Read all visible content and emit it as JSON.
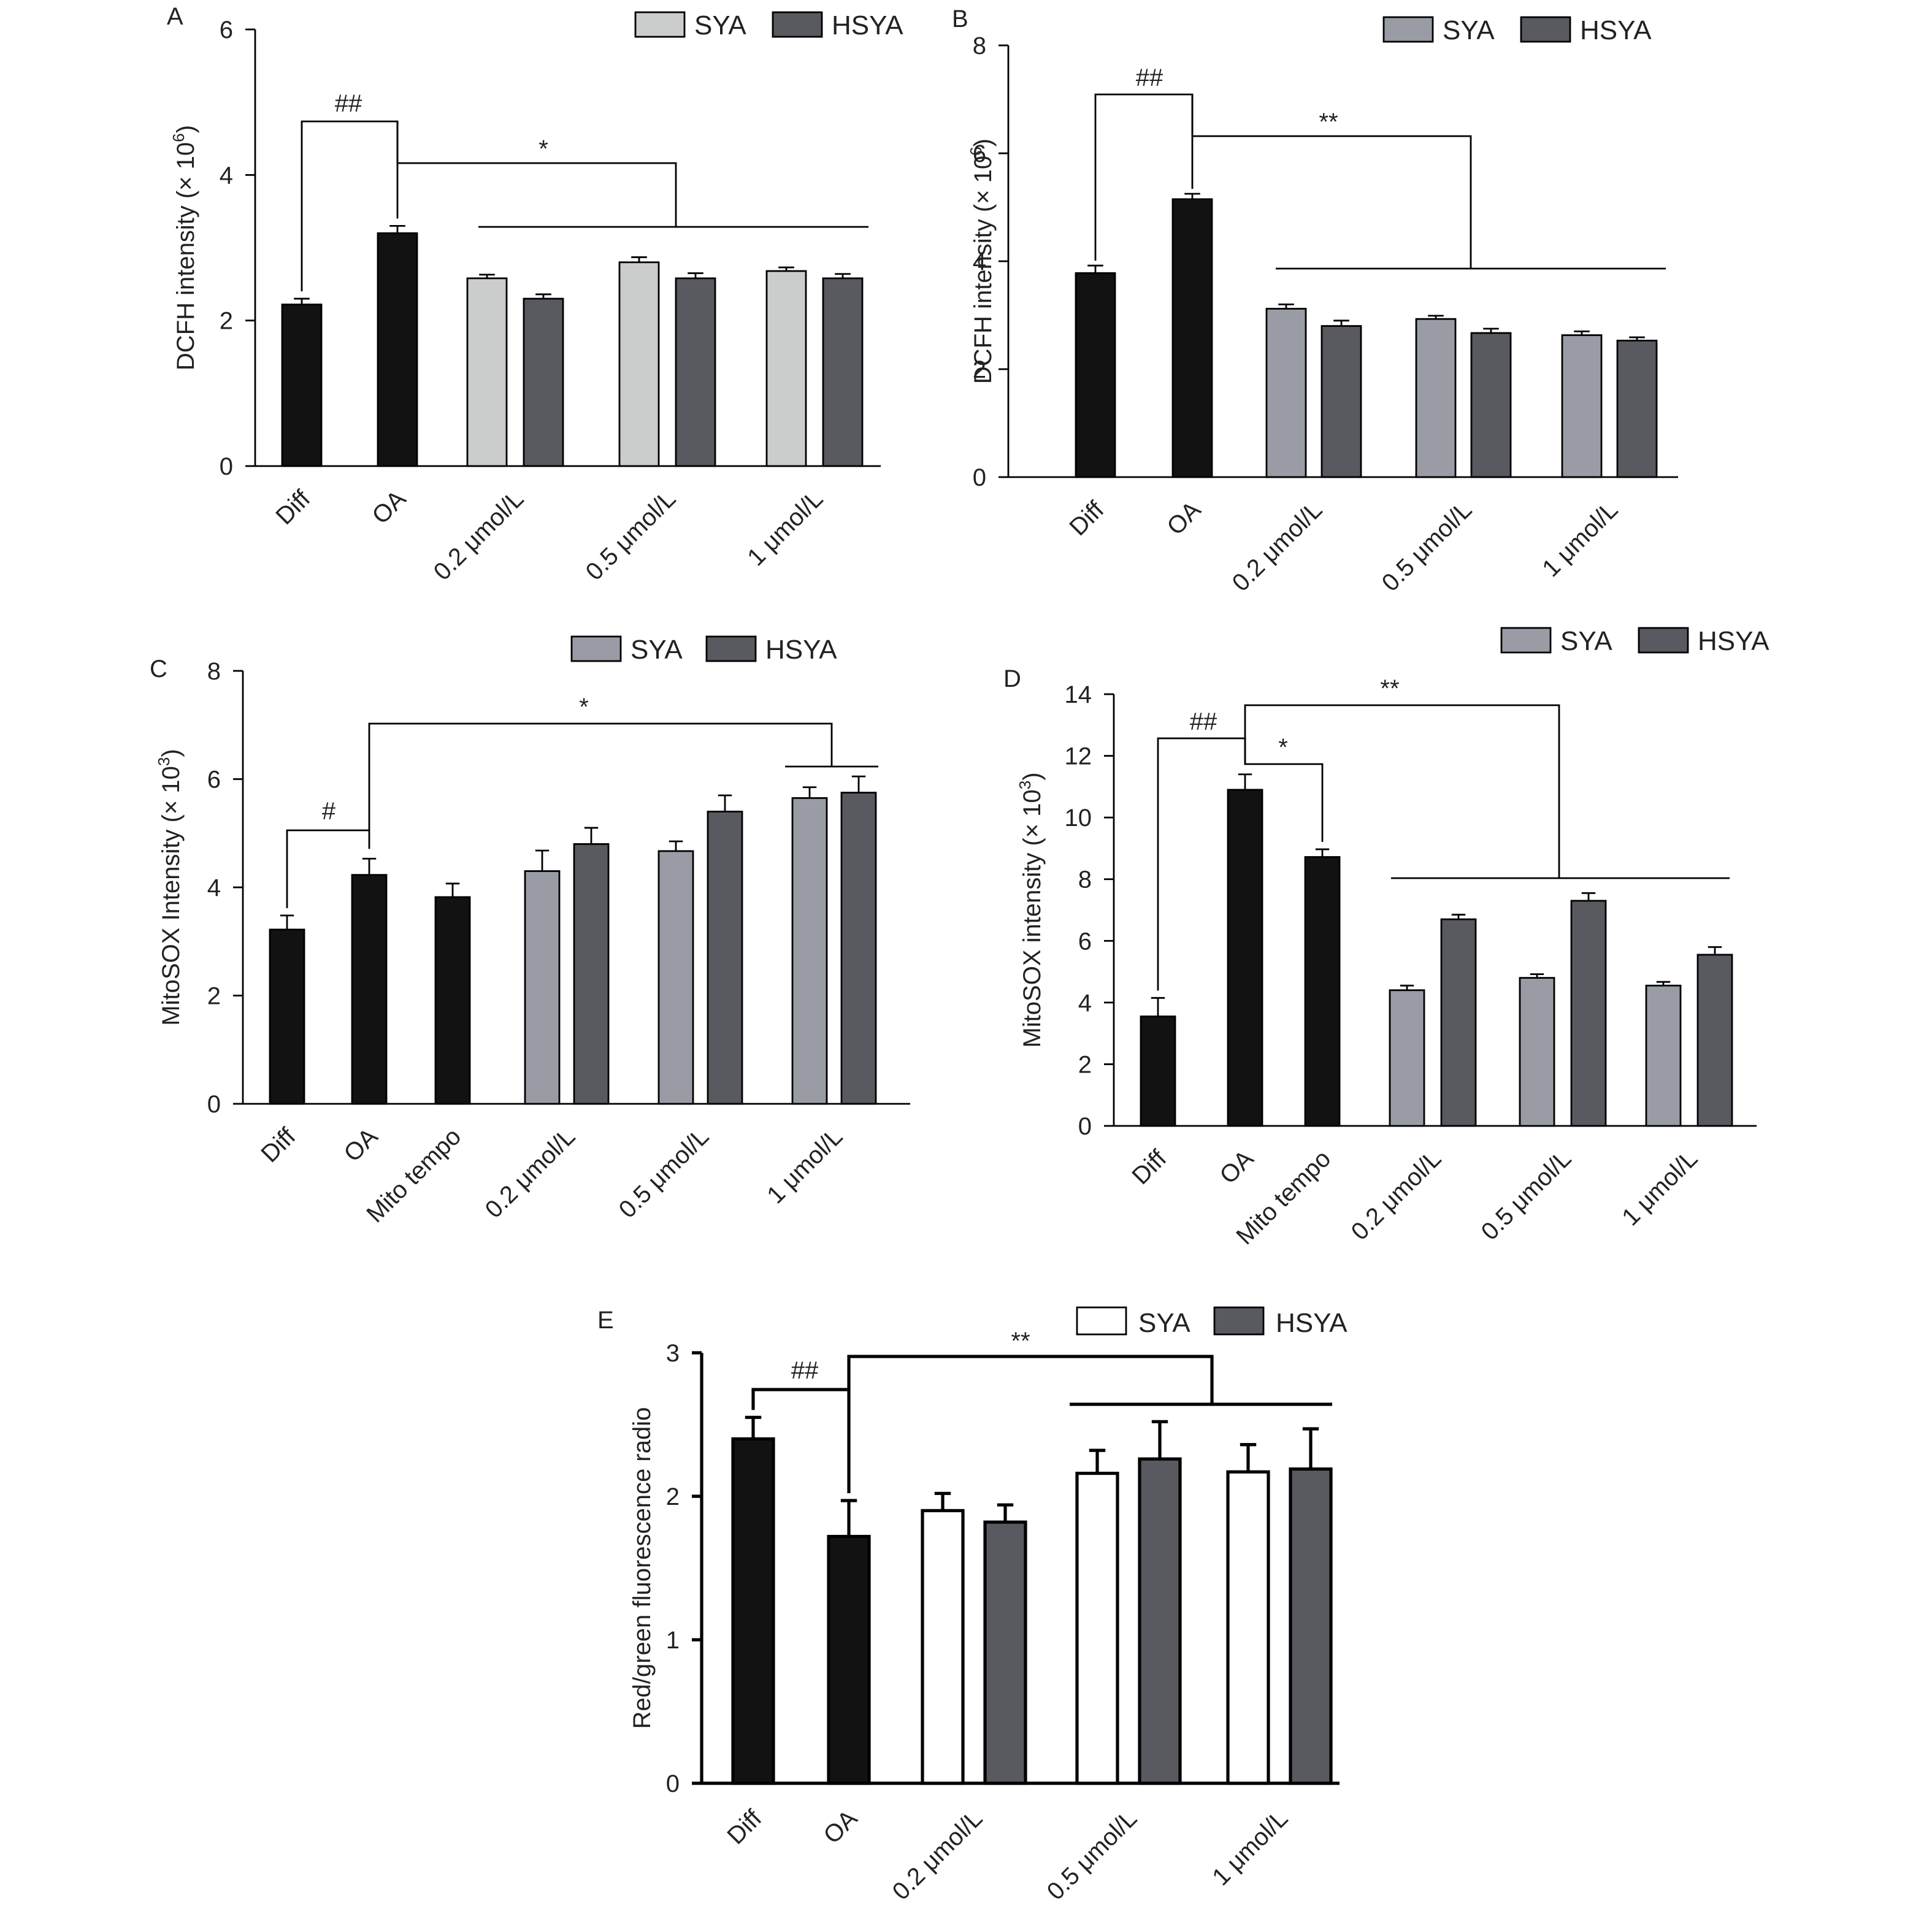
{
  "colors": {
    "control": "#121212",
    "syaLight": "#cbcdcc",
    "syaGray": "#9a9ca5",
    "syaWhite": "#ffffff",
    "hsya": "#585a60",
    "axis": "#000000"
  },
  "chart_data": [
    {
      "id": "A",
      "panel_label": "A",
      "type": "bar",
      "ylabel": "DCFH intensity",
      "ylabel_scale": "(× 10",
      "ylabel_exp": "6",
      "ylim": [
        0,
        6
      ],
      "yticks": [
        0,
        2,
        4,
        6
      ],
      "legend": [
        {
          "name": "SYA",
          "color": "#cbcdcc"
        },
        {
          "name": "HSYA",
          "color": "#585a60"
        }
      ],
      "categories": [
        "Diff",
        "OA",
        "0.2 μmol/L",
        "0.5 μmol/L",
        "1 μmol/L"
      ],
      "series": [
        {
          "name": "SYA",
          "values": [
            null,
            null,
            2.58,
            2.8,
            2.68
          ],
          "errors": [
            null,
            null,
            0.05,
            0.07,
            0.05
          ]
        },
        {
          "name": "HSYA",
          "values": [
            null,
            null,
            2.3,
            2.58,
            2.58
          ],
          "errors": [
            null,
            null,
            0.06,
            0.07,
            0.06
          ]
        }
      ],
      "controls": [
        {
          "category": "Diff",
          "value": 2.22,
          "error": 0.08
        },
        {
          "category": "OA",
          "value": 3.2,
          "error": 0.1
        }
      ],
      "annotations": [
        {
          "text": "##",
          "between": [
            "Diff",
            "OA"
          ]
        },
        {
          "text": "*",
          "between": [
            "OA",
            "treatments"
          ]
        }
      ]
    },
    {
      "id": "B",
      "panel_label": "B",
      "type": "bar",
      "ylabel": "DCFH intensity",
      "ylabel_scale": "(× 10",
      "ylabel_exp": "6",
      "ylim": [
        0,
        8
      ],
      "yticks": [
        0,
        2,
        4,
        6,
        8
      ],
      "legend": [
        {
          "name": "SYA",
          "color": "#9a9ca5"
        },
        {
          "name": "HSYA",
          "color": "#585a60"
        }
      ],
      "categories": [
        "Diff",
        "OA",
        "0.2 μmol/L",
        "0.5 μmol/L",
        "1 μmol/L"
      ],
      "series": [
        {
          "name": "SYA",
          "values": [
            null,
            null,
            3.12,
            2.93,
            2.63
          ],
          "errors": [
            null,
            null,
            0.08,
            0.06,
            0.07
          ]
        },
        {
          "name": "HSYA",
          "values": [
            null,
            null,
            2.8,
            2.67,
            2.53
          ],
          "errors": [
            null,
            null,
            0.1,
            0.08,
            0.06
          ]
        }
      ],
      "controls": [
        {
          "category": "Diff",
          "value": 3.78,
          "error": 0.14
        },
        {
          "category": "OA",
          "value": 5.15,
          "error": 0.1
        }
      ],
      "annotations": [
        {
          "text": "##",
          "between": [
            "Diff",
            "OA"
          ]
        },
        {
          "text": "**",
          "between": [
            "OA",
            "treatments"
          ]
        }
      ]
    },
    {
      "id": "C",
      "panel_label": "C",
      "type": "bar",
      "ylabel": "MitoSOX Intensity",
      "ylabel_scale": "(× 10",
      "ylabel_exp": "3",
      "ylim": [
        0,
        8
      ],
      "yticks": [
        0,
        2,
        4,
        6,
        8
      ],
      "legend": [
        {
          "name": "SYA",
          "color": "#9a9ca5"
        },
        {
          "name": "HSYA",
          "color": "#585a60"
        }
      ],
      "categories": [
        "Diff",
        "OA",
        "Mito tempo",
        "0.2 μmol/L",
        "0.5 μmol/L",
        "1 μmol/L"
      ],
      "series": [
        {
          "name": "SYA",
          "values": [
            null,
            null,
            null,
            4.3,
            4.67,
            5.65
          ],
          "errors": [
            null,
            null,
            null,
            0.38,
            0.18,
            0.2
          ]
        },
        {
          "name": "HSYA",
          "values": [
            null,
            null,
            null,
            4.8,
            5.4,
            5.75
          ],
          "errors": [
            null,
            null,
            null,
            0.3,
            0.3,
            0.3
          ]
        }
      ],
      "controls": [
        {
          "category": "Diff",
          "value": 3.22,
          "error": 0.26
        },
        {
          "category": "OA",
          "value": 4.23,
          "error": 0.3
        },
        {
          "category": "Mito tempo",
          "value": 3.82,
          "error": 0.25
        }
      ],
      "annotations": [
        {
          "text": "#",
          "between": [
            "Diff",
            "OA"
          ]
        },
        {
          "text": "*",
          "between": [
            "OA",
            "1 μmol/L"
          ]
        }
      ]
    },
    {
      "id": "D",
      "panel_label": "D",
      "type": "bar",
      "ylabel": "MitoSOX intensity",
      "ylabel_scale": "(× 10",
      "ylabel_exp": "3",
      "ylim": [
        0,
        14
      ],
      "yticks": [
        0,
        2,
        4,
        6,
        8,
        10,
        12,
        14
      ],
      "legend": [
        {
          "name": "SYA",
          "color": "#9a9ca5"
        },
        {
          "name": "HSYA",
          "color": "#585a60"
        }
      ],
      "categories": [
        "Diff",
        "OA",
        "Mito tempo",
        "0.2 μmol/L",
        "0.5 μmol/L",
        "1 μmol/L"
      ],
      "series": [
        {
          "name": "SYA",
          "values": [
            null,
            null,
            null,
            4.4,
            4.8,
            4.55
          ],
          "errors": [
            null,
            null,
            null,
            0.15,
            0.12,
            0.12
          ]
        },
        {
          "name": "HSYA",
          "values": [
            null,
            null,
            null,
            6.7,
            7.3,
            5.55
          ],
          "errors": [
            null,
            null,
            null,
            0.15,
            0.25,
            0.25
          ]
        }
      ],
      "controls": [
        {
          "category": "Diff",
          "value": 3.55,
          "error": 0.6
        },
        {
          "category": "OA",
          "value": 10.9,
          "error": 0.5
        },
        {
          "category": "Mito tempo",
          "value": 8.72,
          "error": 0.25
        }
      ],
      "annotations": [
        {
          "text": "##",
          "between": [
            "Diff",
            "OA"
          ]
        },
        {
          "text": "*",
          "between": [
            "OA",
            "Mito tempo"
          ]
        },
        {
          "text": "**",
          "between": [
            "OA",
            "treatments"
          ]
        }
      ]
    },
    {
      "id": "E",
      "panel_label": "E",
      "type": "bar",
      "ylabel": "Red/green fluorescence radio",
      "ylabel_scale": "",
      "ylabel_exp": "",
      "ylim": [
        0,
        3
      ],
      "yticks": [
        0,
        1,
        2,
        3
      ],
      "legend": [
        {
          "name": "SYA",
          "color": "#ffffff"
        },
        {
          "name": "HSYA",
          "color": "#585a60"
        }
      ],
      "categories": [
        "Diff",
        "OA",
        "0.2 μmol/L",
        "0.5 μmol/L",
        "1 μmol/L"
      ],
      "series": [
        {
          "name": "SYA",
          "values": [
            null,
            null,
            1.9,
            2.16,
            2.17
          ],
          "errors": [
            null,
            null,
            0.12,
            0.16,
            0.19
          ]
        },
        {
          "name": "HSYA",
          "values": [
            null,
            null,
            1.82,
            2.26,
            2.19
          ],
          "errors": [
            null,
            null,
            0.12,
            0.26,
            0.28
          ]
        }
      ],
      "controls": [
        {
          "category": "Diff",
          "value": 2.4,
          "error": 0.15
        },
        {
          "category": "OA",
          "value": 1.72,
          "error": 0.25
        }
      ],
      "annotations": [
        {
          "text": "##",
          "between": [
            "Diff",
            "OA"
          ]
        },
        {
          "text": "**",
          "between": [
            "OA",
            "treatments"
          ]
        }
      ]
    }
  ]
}
